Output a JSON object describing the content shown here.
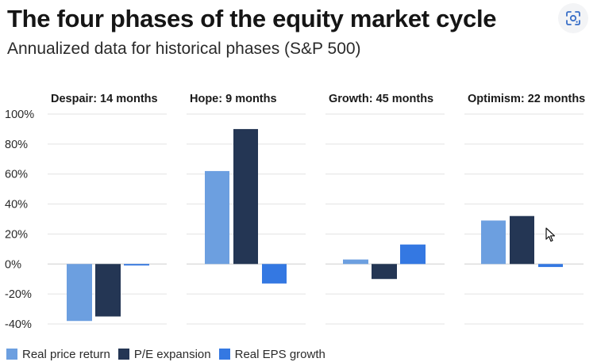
{
  "header": {
    "title": "The four phases of the equity market cycle",
    "subtitle": "Annualized data for historical phases (S&P 500)"
  },
  "icons": {
    "lens": "google-lens-icon",
    "cursor": "mouse-pointer-icon"
  },
  "colors": {
    "real_price_return": "#6c9fe0",
    "pe_expansion": "#243654",
    "real_eps_growth": "#3478e2",
    "gridline": "#e3e3e3",
    "axis": "#cfcfcf"
  },
  "chart_data": {
    "type": "bar",
    "title": "The four phases of the equity market cycle",
    "subtitle": "Annualized data for historical phases (S&P 500)",
    "ylim": [
      -40,
      100
    ],
    "yticks": [
      100,
      80,
      60,
      40,
      20,
      0,
      -20,
      -40
    ],
    "ytick_labels": [
      "100%",
      "80%",
      "60%",
      "40%",
      "20%",
      "0%",
      "-20%",
      "-40%"
    ],
    "grid": true,
    "legend_position": "bottom-left",
    "categories": [
      "Despair: 14 months",
      "Hope: 9 months",
      "Growth: 45 months",
      "Optimism: 22 months"
    ],
    "series": [
      {
        "name": "Real price return",
        "values": [
          -38,
          62,
          3,
          29
        ]
      },
      {
        "name": "P/E expansion",
        "values": [
          -35,
          90,
          -10,
          32
        ]
      },
      {
        "name": "Real EPS growth",
        "values": [
          -1,
          -13,
          13,
          -2
        ]
      }
    ]
  }
}
